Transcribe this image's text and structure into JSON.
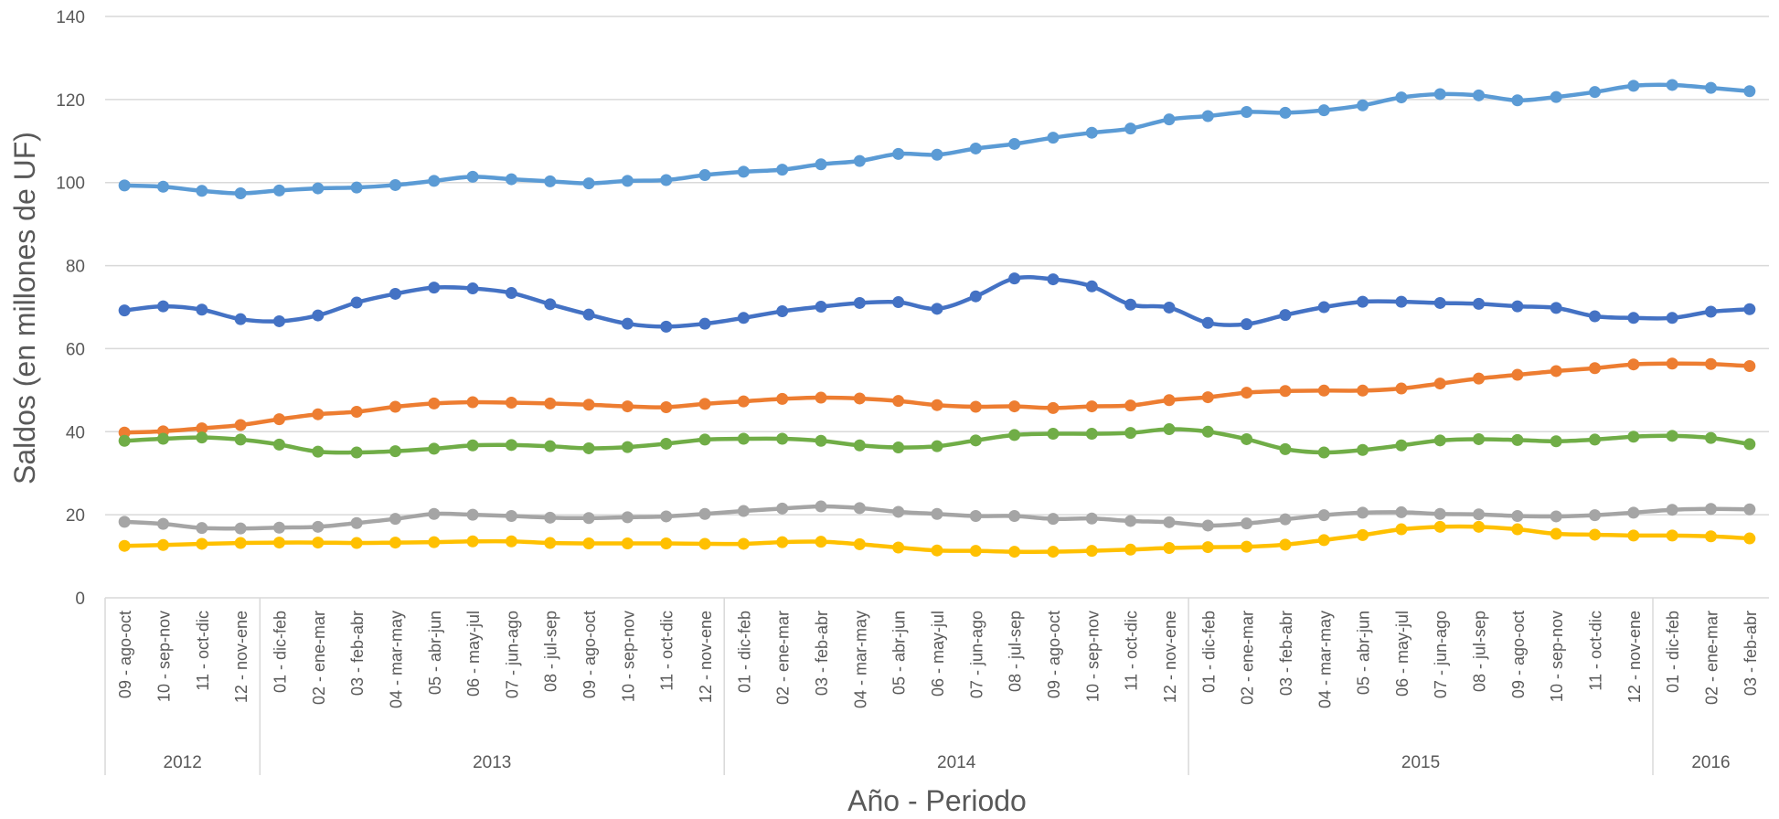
{
  "chart_data": {
    "type": "line",
    "title": "",
    "xlabel": "Año - Periodo",
    "ylabel": "Saldos (en millones de UF)",
    "ylim": [
      0,
      140
    ],
    "yticks": [
      0,
      20,
      40,
      60,
      80,
      100,
      120,
      140
    ],
    "grid": true,
    "legend": "none",
    "categories": [
      "09 - ago-oct",
      "10 - sep-nov",
      "11 - oct-dic",
      "12 - nov-ene",
      "01 - dic-feb",
      "02 - ene-mar",
      "03 - feb-abr",
      "04 - mar-may",
      "05 - abr-jun",
      "06 - may-jul",
      "07 - jun-ago",
      "08 - jul-sep",
      "09 - ago-oct",
      "10 - sep-nov",
      "11 - oct-dic",
      "12 - nov-ene",
      "01 - dic-feb",
      "02 - ene-mar",
      "03 - feb-abr",
      "04 - mar-may",
      "05 - abr-jun",
      "06 - may-jul",
      "07 - jun-ago",
      "08 - jul-sep",
      "09 - ago-oct",
      "10 - sep-nov",
      "11 - oct-dic",
      "12 - nov-ene",
      "01 - dic-feb",
      "02 - ene-mar",
      "03 - feb-abr",
      "04 - mar-may",
      "05 - abr-jun",
      "06 - may-jul",
      "07 - jun-ago",
      "08 - jul-sep",
      "09 - ago-oct",
      "10 - sep-nov",
      "11 - oct-dic",
      "12 - nov-ene",
      "01 - dic-feb",
      "02 - ene-mar",
      "03 - feb-abr"
    ],
    "year_groups": [
      {
        "label": "2012",
        "count": 4
      },
      {
        "label": "2013",
        "count": 12
      },
      {
        "label": "2014",
        "count": 12
      },
      {
        "label": "2015",
        "count": 12
      },
      {
        "label": "2016",
        "count": 3
      }
    ],
    "series": [
      {
        "color": "#5B9BD5",
        "values": [
          99.3,
          99.0,
          98.0,
          97.4,
          98.1,
          98.6,
          98.8,
          99.4,
          100.4,
          101.4,
          100.8,
          100.3,
          99.8,
          100.4,
          100.6,
          101.8,
          102.6,
          103.1,
          104.4,
          105.2,
          106.9,
          106.7,
          108.2,
          109.3,
          110.8,
          112.0,
          113.0,
          115.2,
          116.0,
          117.0,
          116.8,
          117.4,
          118.6,
          120.5,
          121.3,
          121.0,
          119.8,
          120.6,
          121.8,
          123.3,
          123.5,
          122.8,
          122.0
        ]
      },
      {
        "color": "#4472C4",
        "values": [
          69.2,
          70.2,
          69.4,
          67.1,
          66.6,
          68.0,
          71.1,
          73.2,
          74.7,
          74.5,
          73.4,
          70.7,
          68.2,
          66.0,
          65.3,
          66.0,
          67.4,
          69.0,
          70.1,
          71.0,
          71.2,
          69.6,
          72.6,
          76.9,
          76.7,
          75.0,
          70.6,
          69.9,
          66.2,
          65.9,
          68.1,
          70.0,
          71.3,
          71.3,
          71.0,
          70.8,
          70.2,
          69.8,
          67.8,
          67.4,
          67.4,
          68.9,
          69.5
        ]
      },
      {
        "color": "#ED7D31",
        "values": [
          39.8,
          40.1,
          40.8,
          41.6,
          43.0,
          44.2,
          44.8,
          46.0,
          46.8,
          47.1,
          47.0,
          46.8,
          46.5,
          46.1,
          45.9,
          46.7,
          47.3,
          47.9,
          48.2,
          48.0,
          47.4,
          46.4,
          46.0,
          46.1,
          45.7,
          46.1,
          46.3,
          47.6,
          48.3,
          49.4,
          49.8,
          49.9,
          49.9,
          50.4,
          51.6,
          52.8,
          53.7,
          54.6,
          55.3,
          56.2,
          56.4,
          56.3,
          55.8
        ]
      },
      {
        "color": "#70AD47",
        "values": [
          37.8,
          38.3,
          38.6,
          38.1,
          36.9,
          35.2,
          35.0,
          35.3,
          35.9,
          36.7,
          36.8,
          36.5,
          36.0,
          36.3,
          37.1,
          38.1,
          38.3,
          38.3,
          37.8,
          36.7,
          36.2,
          36.5,
          37.9,
          39.2,
          39.5,
          39.5,
          39.7,
          40.6,
          40.0,
          38.2,
          35.8,
          35.0,
          35.6,
          36.7,
          37.9,
          38.2,
          38.0,
          37.7,
          38.1,
          38.8,
          39.0,
          38.5,
          37.0
        ]
      },
      {
        "color": "#A5A5A5",
        "values": [
          18.3,
          17.8,
          16.8,
          16.7,
          16.9,
          17.1,
          18.0,
          19.0,
          20.2,
          20.0,
          19.7,
          19.3,
          19.2,
          19.4,
          19.6,
          20.2,
          20.9,
          21.5,
          22.0,
          21.6,
          20.7,
          20.2,
          19.7,
          19.7,
          19.0,
          19.1,
          18.5,
          18.2,
          17.4,
          17.9,
          18.9,
          19.9,
          20.5,
          20.6,
          20.2,
          20.1,
          19.7,
          19.6,
          19.9,
          20.5,
          21.2,
          21.4,
          21.3
        ]
      },
      {
        "color": "#FFC000",
        "values": [
          12.5,
          12.7,
          13.0,
          13.2,
          13.3,
          13.3,
          13.2,
          13.3,
          13.4,
          13.6,
          13.6,
          13.2,
          13.1,
          13.1,
          13.1,
          13.0,
          13.0,
          13.4,
          13.5,
          12.9,
          12.1,
          11.4,
          11.3,
          11.1,
          11.1,
          11.3,
          11.6,
          12.0,
          12.2,
          12.3,
          12.8,
          13.9,
          15.1,
          16.5,
          17.1,
          17.1,
          16.5,
          15.4,
          15.2,
          15.0,
          15.0,
          14.8,
          14.3
        ]
      }
    ]
  }
}
